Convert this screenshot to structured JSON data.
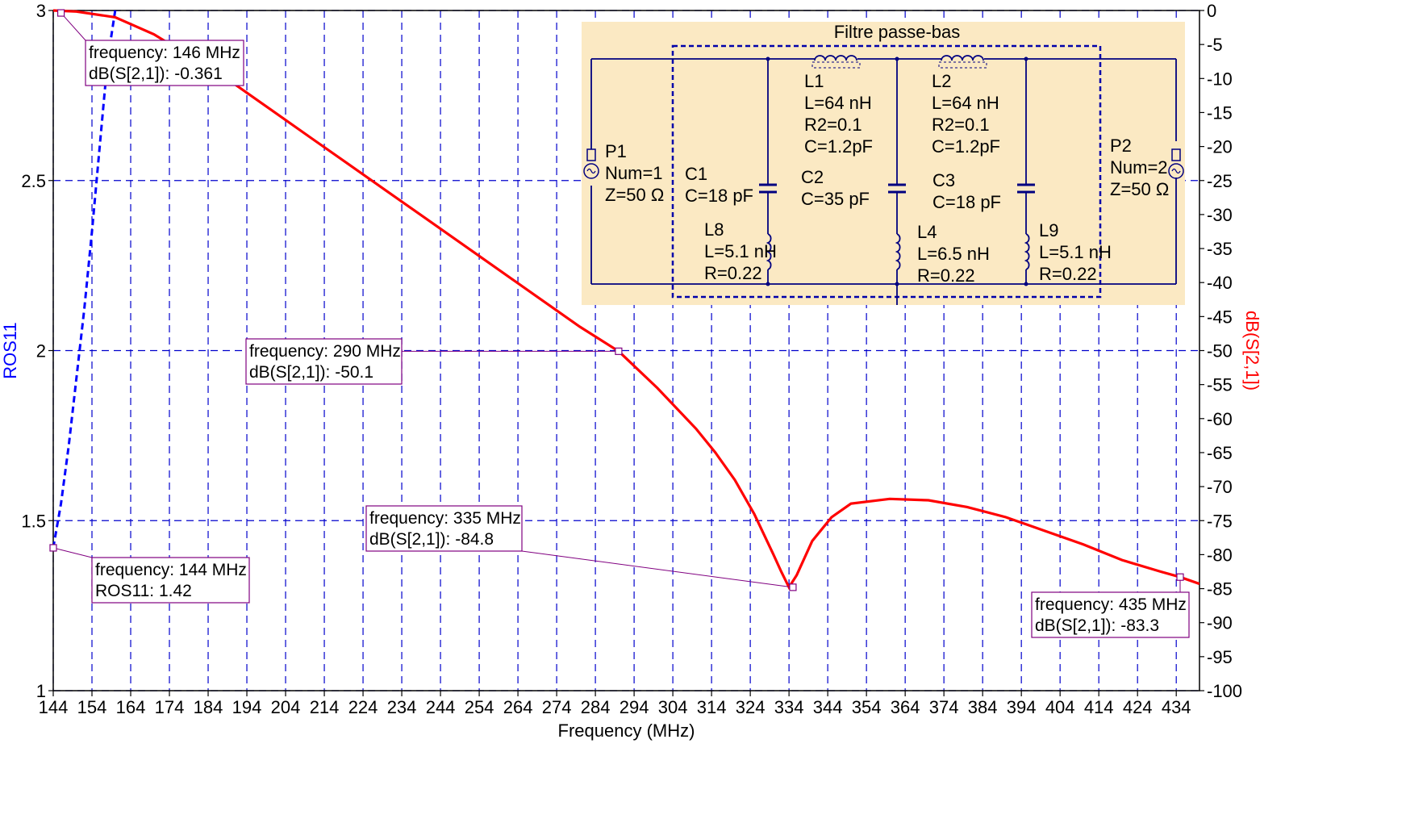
{
  "chart_data": {
    "type": "line",
    "xlabel": "Frequency (MHz)",
    "ylabel_left": "ROS11",
    "ylabel_right": "dB(S[2,1])",
    "xlim": [
      144,
      440
    ],
    "ylim_left": [
      1,
      3
    ],
    "ylim_right": [
      -100,
      0
    ],
    "x_ticks": [
      144,
      154,
      164,
      174,
      184,
      194,
      204,
      214,
      224,
      234,
      244,
      254,
      264,
      274,
      284,
      294,
      304,
      314,
      324,
      334,
      344,
      354,
      364,
      374,
      384,
      394,
      404,
      414,
      424,
      434
    ],
    "y_left_ticks": [
      {
        "v": 1,
        "label": "1"
      },
      {
        "v": 1.5,
        "label": "1.5"
      },
      {
        "v": 2,
        "label": "2"
      },
      {
        "v": 2.5,
        "label": "2.5"
      },
      {
        "v": 3,
        "label": "3"
      }
    ],
    "y_right_ticks": [
      0,
      -5,
      -10,
      -15,
      -20,
      -25,
      -30,
      -35,
      -40,
      -45,
      -50,
      -55,
      -60,
      -65,
      -70,
      -75,
      -80,
      -85,
      -90,
      -95,
      -100
    ],
    "grid": true,
    "series": [
      {
        "name": "ROS11",
        "axis": "left",
        "color": "#0000ff",
        "style": "dashed",
        "x": [
          144,
          146,
          148,
          150,
          152,
          154,
          156,
          158,
          160
        ],
        "y": [
          1.42,
          1.55,
          1.72,
          1.92,
          2.12,
          2.35,
          2.6,
          2.85,
          3.0
        ]
      },
      {
        "name": "dB(S[2,1])",
        "axis": "right",
        "color": "#ff0000",
        "style": "solid",
        "x": [
          144,
          150,
          160,
          170,
          180,
          190,
          200,
          210,
          220,
          230,
          240,
          250,
          260,
          270,
          280,
          290,
          300,
          310,
          315,
          320,
          325,
          330,
          332,
          334,
          336,
          340,
          345,
          350,
          360,
          370,
          380,
          390,
          400,
          410,
          420,
          430,
          435,
          440
        ],
        "y": [
          0.0,
          -0.15,
          -1.0,
          -3.5,
          -7.0,
          -10.5,
          -14.5,
          -18.5,
          -22.5,
          -26.5,
          -30.5,
          -34.5,
          -38.5,
          -42.5,
          -46.5,
          -50.1,
          -55.5,
          -61.5,
          -65.0,
          -69.0,
          -74.0,
          -80.0,
          -82.5,
          -84.8,
          -83.0,
          -78.0,
          -74.5,
          -72.5,
          -71.8,
          -72.0,
          -73.0,
          -74.5,
          -76.5,
          -78.5,
          -80.8,
          -82.5,
          -83.3,
          -84.3
        ]
      }
    ],
    "markers": [
      {
        "series": "dB(S[2,1])",
        "x": 146,
        "y": -0.361,
        "line1": "frequency: 146 MHz",
        "line2": "dB(S[2,1]): -0.361"
      },
      {
        "series": "dB(S[2,1])",
        "x": 290,
        "y": -50.1,
        "line1": "frequency: 290 MHz",
        "line2": "dB(S[2,1]): -50.1"
      },
      {
        "series": "dB(S[2,1])",
        "x": 335,
        "y": -84.8,
        "line1": "frequency: 335 MHz",
        "line2": "dB(S[2,1]): -84.8"
      },
      {
        "series": "ROS11",
        "x": 144,
        "y": 1.42,
        "line1": "frequency: 144 MHz",
        "line2": "ROS11: 1.42"
      },
      {
        "series": "dB(S[2,1])",
        "x": 435,
        "y": -83.3,
        "line1": "frequency: 435 MHz",
        "line2": "dB(S[2,1]): -83.3"
      }
    ]
  },
  "schematic": {
    "title": "Filtre passe-bas",
    "ports": [
      {
        "lines": [
          "P1",
          "Num=1",
          "Z=50 Ω"
        ]
      },
      {
        "lines": [
          "P2",
          "Num=2",
          "Z=50 Ω"
        ]
      }
    ],
    "series_elements": [
      {
        "lines": [
          "L1",
          "L=64 nH",
          "R2=0.1",
          "C=1.2pF"
        ]
      },
      {
        "lines": [
          "L2",
          "L=64 nH",
          "R2=0.1",
          "C=1.2pF"
        ]
      }
    ],
    "capacitors": [
      {
        "lines": [
          "C1",
          "C=18 pF"
        ]
      },
      {
        "lines": [
          "C2",
          "C=35 pF"
        ]
      },
      {
        "lines": [
          "C3",
          "C=18 pF"
        ]
      }
    ],
    "shunt_inductors": [
      {
        "lines": [
          "L8",
          "L=5.1 nH",
          "R=0.22"
        ]
      },
      {
        "lines": [
          "L4",
          "L=6.5 nH",
          "R=0.22"
        ]
      },
      {
        "lines": [
          "L9",
          "L=5.1 nH",
          "R=0.22"
        ]
      }
    ]
  },
  "colors": {
    "grid": "#0000cc",
    "ros11": "#0000ff",
    "s21": "#ff0000",
    "annotation_border": "#800080",
    "schematic_bg": "#fbe9c3",
    "wire": "#000080"
  }
}
